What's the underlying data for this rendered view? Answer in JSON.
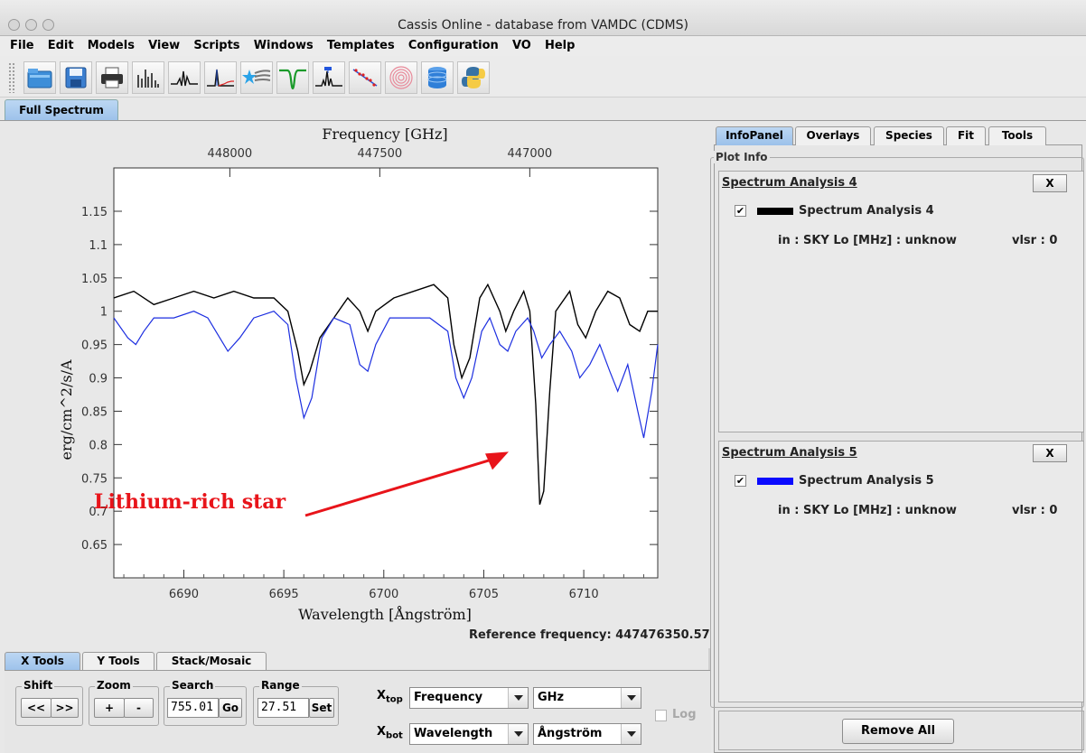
{
  "window": {
    "title": "Cassis Online - database from VAMDC (CDMS)"
  },
  "menu": [
    "File",
    "Edit",
    "Models",
    "View",
    "Scripts",
    "Windows",
    "Templates",
    "Configuration",
    "VO",
    "Help"
  ],
  "toolbar": {
    "icons": [
      "open-folder-icon",
      "save-icon",
      "print-icon",
      "spectrum-lines-icon",
      "line-spectrum-icon",
      "spectrum-peak-icon",
      "comet-star-icon",
      "absorption-line-icon",
      "line-identification-icon",
      "rotational-diagram-icon",
      "rings-icon",
      "database-icon",
      "python-icon"
    ]
  },
  "main_tab": "Full Spectrum",
  "plot": {
    "chart_data": {
      "type": "line",
      "top_axis_label": "Frequency [GHz]",
      "top_ticks": [
        "448000",
        "447500",
        "447000"
      ],
      "xlabel": "Wavelength [Ångström]",
      "ylabel": "erg/cm^2/s/A",
      "x_ticks": [
        "6690",
        "6695",
        "6700",
        "6705",
        "6710"
      ],
      "y_ticks": [
        "0.65",
        "0.7",
        "0.75",
        "0.8",
        "0.85",
        "0.9",
        "0.95",
        "1",
        "1.05",
        "1.1",
        "1.15"
      ],
      "xlim": [
        6686.5,
        6713.7
      ],
      "ylim": [
        0.6,
        1.215
      ],
      "series": [
        {
          "name": "Spectrum Analysis 4",
          "color": "#000000",
          "points": [
            [
              6686.5,
              1.02
            ],
            [
              6687.5,
              1.03
            ],
            [
              6688.5,
              1.01
            ],
            [
              6689.5,
              1.02
            ],
            [
              6690.5,
              1.03
            ],
            [
              6691.5,
              1.02
            ],
            [
              6692.5,
              1.03
            ],
            [
              6693.5,
              1.02
            ],
            [
              6694.5,
              1.02
            ],
            [
              6695.2,
              1.0
            ],
            [
              6695.7,
              0.94
            ],
            [
              6696.0,
              0.89
            ],
            [
              6696.3,
              0.91
            ],
            [
              6696.8,
              0.96
            ],
            [
              6697.5,
              0.99
            ],
            [
              6698.2,
              1.02
            ],
            [
              6698.8,
              1.0
            ],
            [
              6699.2,
              0.97
            ],
            [
              6699.6,
              1.0
            ],
            [
              6700.5,
              1.02
            ],
            [
              6701.5,
              1.03
            ],
            [
              6702.5,
              1.04
            ],
            [
              6703.2,
              1.02
            ],
            [
              6703.5,
              0.95
            ],
            [
              6703.9,
              0.9
            ],
            [
              6704.3,
              0.93
            ],
            [
              6704.8,
              1.02
            ],
            [
              6705.2,
              1.04
            ],
            [
              6705.8,
              1.0
            ],
            [
              6706.1,
              0.97
            ],
            [
              6706.5,
              1.0
            ],
            [
              6707.0,
              1.03
            ],
            [
              6707.3,
              1.0
            ],
            [
              6707.6,
              0.86
            ],
            [
              6707.8,
              0.71
            ],
            [
              6708.0,
              0.73
            ],
            [
              6708.3,
              0.88
            ],
            [
              6708.6,
              1.0
            ],
            [
              6709.3,
              1.03
            ],
            [
              6709.7,
              0.98
            ],
            [
              6710.1,
              0.96
            ],
            [
              6710.6,
              1.0
            ],
            [
              6711.2,
              1.03
            ],
            [
              6711.8,
              1.02
            ],
            [
              6712.3,
              0.98
            ],
            [
              6712.8,
              0.97
            ],
            [
              6713.2,
              1.0
            ],
            [
              6713.7,
              1.0
            ]
          ]
        },
        {
          "name": "Spectrum Analysis 5",
          "color": "#1c2ee0",
          "points": [
            [
              6686.5,
              0.99
            ],
            [
              6687.2,
              0.96
            ],
            [
              6687.6,
              0.95
            ],
            [
              6688.0,
              0.97
            ],
            [
              6688.5,
              0.99
            ],
            [
              6689.5,
              0.99
            ],
            [
              6690.5,
              1.0
            ],
            [
              6691.2,
              0.99
            ],
            [
              6691.6,
              0.97
            ],
            [
              6692.2,
              0.94
            ],
            [
              6692.8,
              0.96
            ],
            [
              6693.5,
              0.99
            ],
            [
              6694.5,
              1.0
            ],
            [
              6695.2,
              0.98
            ],
            [
              6695.6,
              0.9
            ],
            [
              6696.0,
              0.84
            ],
            [
              6696.4,
              0.87
            ],
            [
              6696.9,
              0.96
            ],
            [
              6697.5,
              0.99
            ],
            [
              6698.3,
              0.98
            ],
            [
              6698.8,
              0.92
            ],
            [
              6699.2,
              0.91
            ],
            [
              6699.6,
              0.95
            ],
            [
              6700.3,
              0.99
            ],
            [
              6701.3,
              0.99
            ],
            [
              6702.3,
              0.99
            ],
            [
              6703.2,
              0.97
            ],
            [
              6703.6,
              0.9
            ],
            [
              6704.0,
              0.87
            ],
            [
              6704.4,
              0.9
            ],
            [
              6704.9,
              0.97
            ],
            [
              6705.3,
              0.99
            ],
            [
              6705.8,
              0.95
            ],
            [
              6706.2,
              0.94
            ],
            [
              6706.6,
              0.97
            ],
            [
              6707.2,
              0.99
            ],
            [
              6707.5,
              0.97
            ],
            [
              6707.9,
              0.93
            ],
            [
              6708.3,
              0.95
            ],
            [
              6708.8,
              0.97
            ],
            [
              6709.4,
              0.94
            ],
            [
              6709.8,
              0.9
            ],
            [
              6710.3,
              0.92
            ],
            [
              6710.8,
              0.95
            ],
            [
              6711.3,
              0.91
            ],
            [
              6711.7,
              0.88
            ],
            [
              6712.2,
              0.92
            ],
            [
              6712.7,
              0.85
            ],
            [
              6713.0,
              0.81
            ],
            [
              6713.4,
              0.88
            ],
            [
              6713.7,
              0.95
            ]
          ]
        }
      ],
      "annotation": {
        "text": "Lithium-rich star",
        "color": "#e8141a",
        "arrow_to": [
          6707.6,
          0.8
        ]
      }
    },
    "reference_frequency": "Reference frequency: 447476350.57"
  },
  "bottom_tabs": [
    "X Tools",
    "Y Tools",
    "Stack/Mosaic"
  ],
  "xtools": {
    "shift": {
      "label": "Shift",
      "left": "<<",
      "right": ">>"
    },
    "zoom": {
      "label": "Zoom",
      "plus": "+",
      "minus": "-"
    },
    "search": {
      "label": "Search",
      "value": "755.01",
      "go": "Go"
    },
    "range": {
      "label": "Range",
      "value": "27.51",
      "set": "Set"
    },
    "xtop": {
      "label": "X",
      "sub": "top",
      "quantity": "Frequency",
      "unit": "GHz"
    },
    "xbot": {
      "label": "X",
      "sub": "bot",
      "quantity": "Wavelength",
      "unit": "Ångström"
    },
    "log": "Log"
  },
  "right_tabs": [
    "InfoPanel",
    "Overlays",
    "Species",
    "Fit",
    "Tools"
  ],
  "plot_info": {
    "title": "Plot Info",
    "analyses": [
      {
        "header": "Spectrum Analysis 4",
        "close": "X",
        "checked": "✔",
        "name": "Spectrum Analysis 4",
        "color": "#000000",
        "info": "in : SKY Lo [MHz] : unknow",
        "vlsr": "vlsr : 0"
      },
      {
        "header": "Spectrum Analysis 5",
        "close": "X",
        "checked": "✔",
        "name": "Spectrum Analysis 5",
        "color": "#0a0aff",
        "info": "in : SKY Lo [MHz] : unknow",
        "vlsr": "vlsr : 0"
      }
    ],
    "remove_all": "Remove All"
  }
}
